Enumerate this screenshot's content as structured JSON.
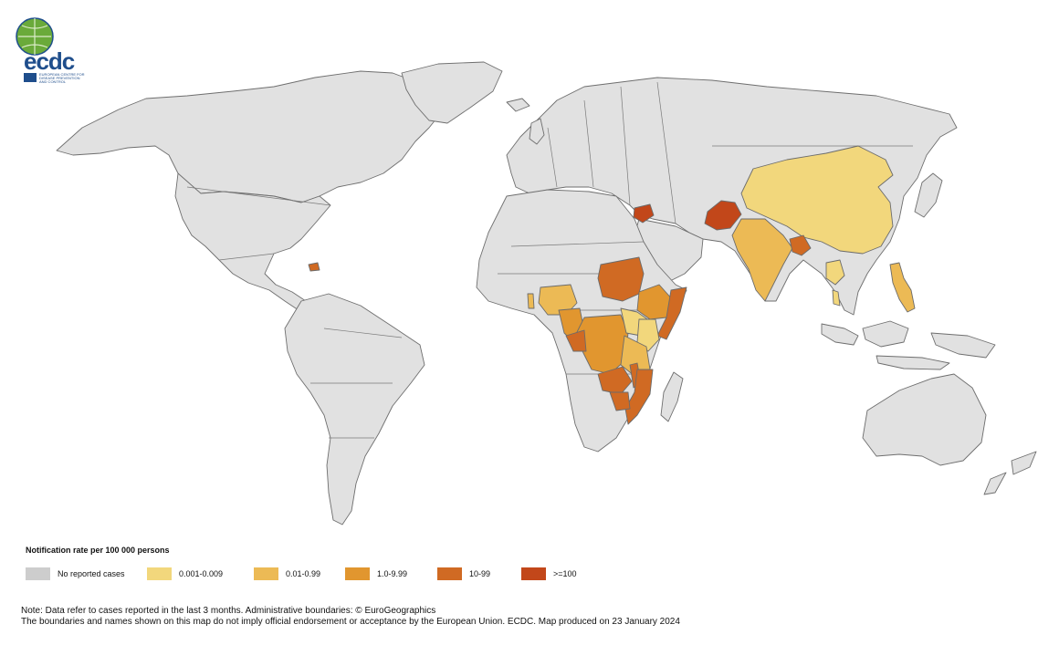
{
  "logo": {
    "wordmark": "ecdc",
    "line1": "EUROPEAN CENTRE FOR",
    "line2": "DISEASE PREVENTION",
    "line3": "AND CONTROL"
  },
  "colors": {
    "no_cases": "#cdcdcd",
    "c1": "#f2d77c",
    "c2": "#ecba55",
    "c3": "#e1962f",
    "c4": "#d06a23",
    "c5": "#c2471a",
    "land": "#e1e1e1"
  },
  "legend": {
    "title": "Notification rate per 100 000 persons",
    "items": [
      {
        "label": "No reported cases",
        "color": "#cdcdcd"
      },
      {
        "label": "0.001-0.009",
        "color": "#f2d77c"
      },
      {
        "label": "0.01-0.99",
        "color": "#ecba55"
      },
      {
        "label": "1.0-9.99",
        "color": "#e1962f"
      },
      {
        "label": "10-99",
        "color": "#d06a23"
      },
      {
        "label": ">=100",
        "color": "#c2471a"
      }
    ]
  },
  "notes": {
    "line1": "Note: Data refer to cases reported in the last 3 months. Administrative boundaries: © EuroGeographics",
    "line2": "The boundaries and names shown on this map do not imply official endorsement or acceptance by the European Union. ECDC. Map produced on 23 January 2024"
  }
}
